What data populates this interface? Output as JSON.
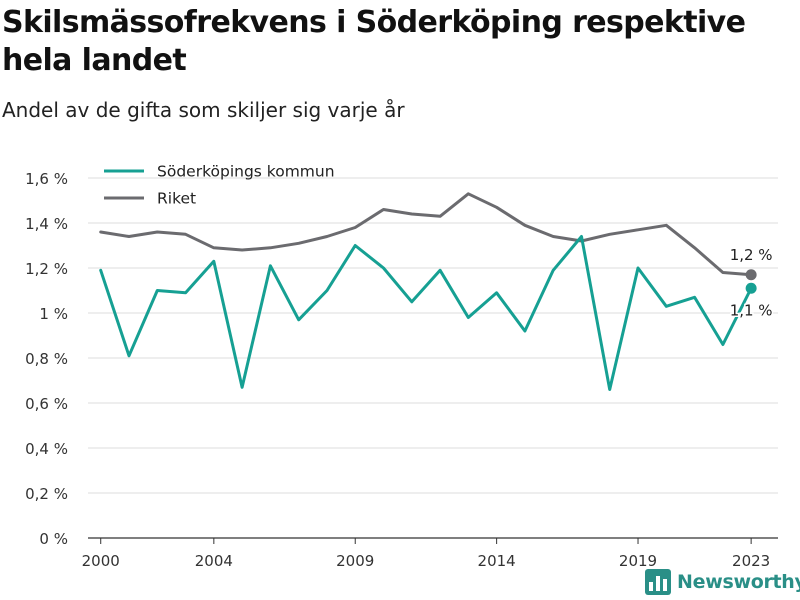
{
  "header": {
    "title": "Skilsmässofrekvens i Söderköping respektive hela landet",
    "subtitle": "Andel av de gifta som skiljer sig varje år"
  },
  "brand": {
    "name": "Newsworthy",
    "color": "#2a8f87",
    "icon": "bar-chart-logo-icon"
  },
  "chart_data": {
    "type": "line",
    "title": "Skilsmässofrekvens i Söderköping respektive hela landet",
    "subtitle": "Andel av de gifta som skiljer sig varje år",
    "x": [
      2000,
      2001,
      2002,
      2003,
      2004,
      2005,
      2006,
      2007,
      2008,
      2009,
      2010,
      2011,
      2012,
      2013,
      2014,
      2015,
      2016,
      2017,
      2018,
      2019,
      2020,
      2021,
      2022,
      2023
    ],
    "x_ticks": [
      2000,
      2004,
      2009,
      2014,
      2019,
      2023
    ],
    "y_ticks": [
      0,
      0.2,
      0.4,
      0.6,
      0.8,
      1,
      1.2,
      1.4,
      1.6
    ],
    "y_tick_labels": [
      "0 %",
      "0,2 %",
      "0,4 %",
      "0,6 %",
      "0,8 %",
      "1 %",
      "1,2 %",
      "1,4 %",
      "1,6 %"
    ],
    "ylim": [
      0,
      1.6
    ],
    "grid": true,
    "legend_position": "top-left",
    "series": [
      {
        "name": "Söderköpings kommun",
        "color": "#16a093",
        "values": [
          1.19,
          0.81,
          1.1,
          1.09,
          1.23,
          0.67,
          1.21,
          0.97,
          1.1,
          1.3,
          1.2,
          1.05,
          1.19,
          0.98,
          1.09,
          0.92,
          1.19,
          1.34,
          0.66,
          1.2,
          1.03,
          1.07,
          0.86,
          1.11
        ],
        "end_label": "1,1 %"
      },
      {
        "name": "Riket",
        "color": "#6b6b6f",
        "values": [
          1.36,
          1.34,
          1.36,
          1.35,
          1.29,
          1.28,
          1.29,
          1.31,
          1.34,
          1.38,
          1.46,
          1.44,
          1.43,
          1.53,
          1.47,
          1.39,
          1.34,
          1.32,
          1.35,
          1.37,
          1.39,
          1.29,
          1.18,
          1.17
        ],
        "end_label": "1,2 %"
      }
    ]
  }
}
